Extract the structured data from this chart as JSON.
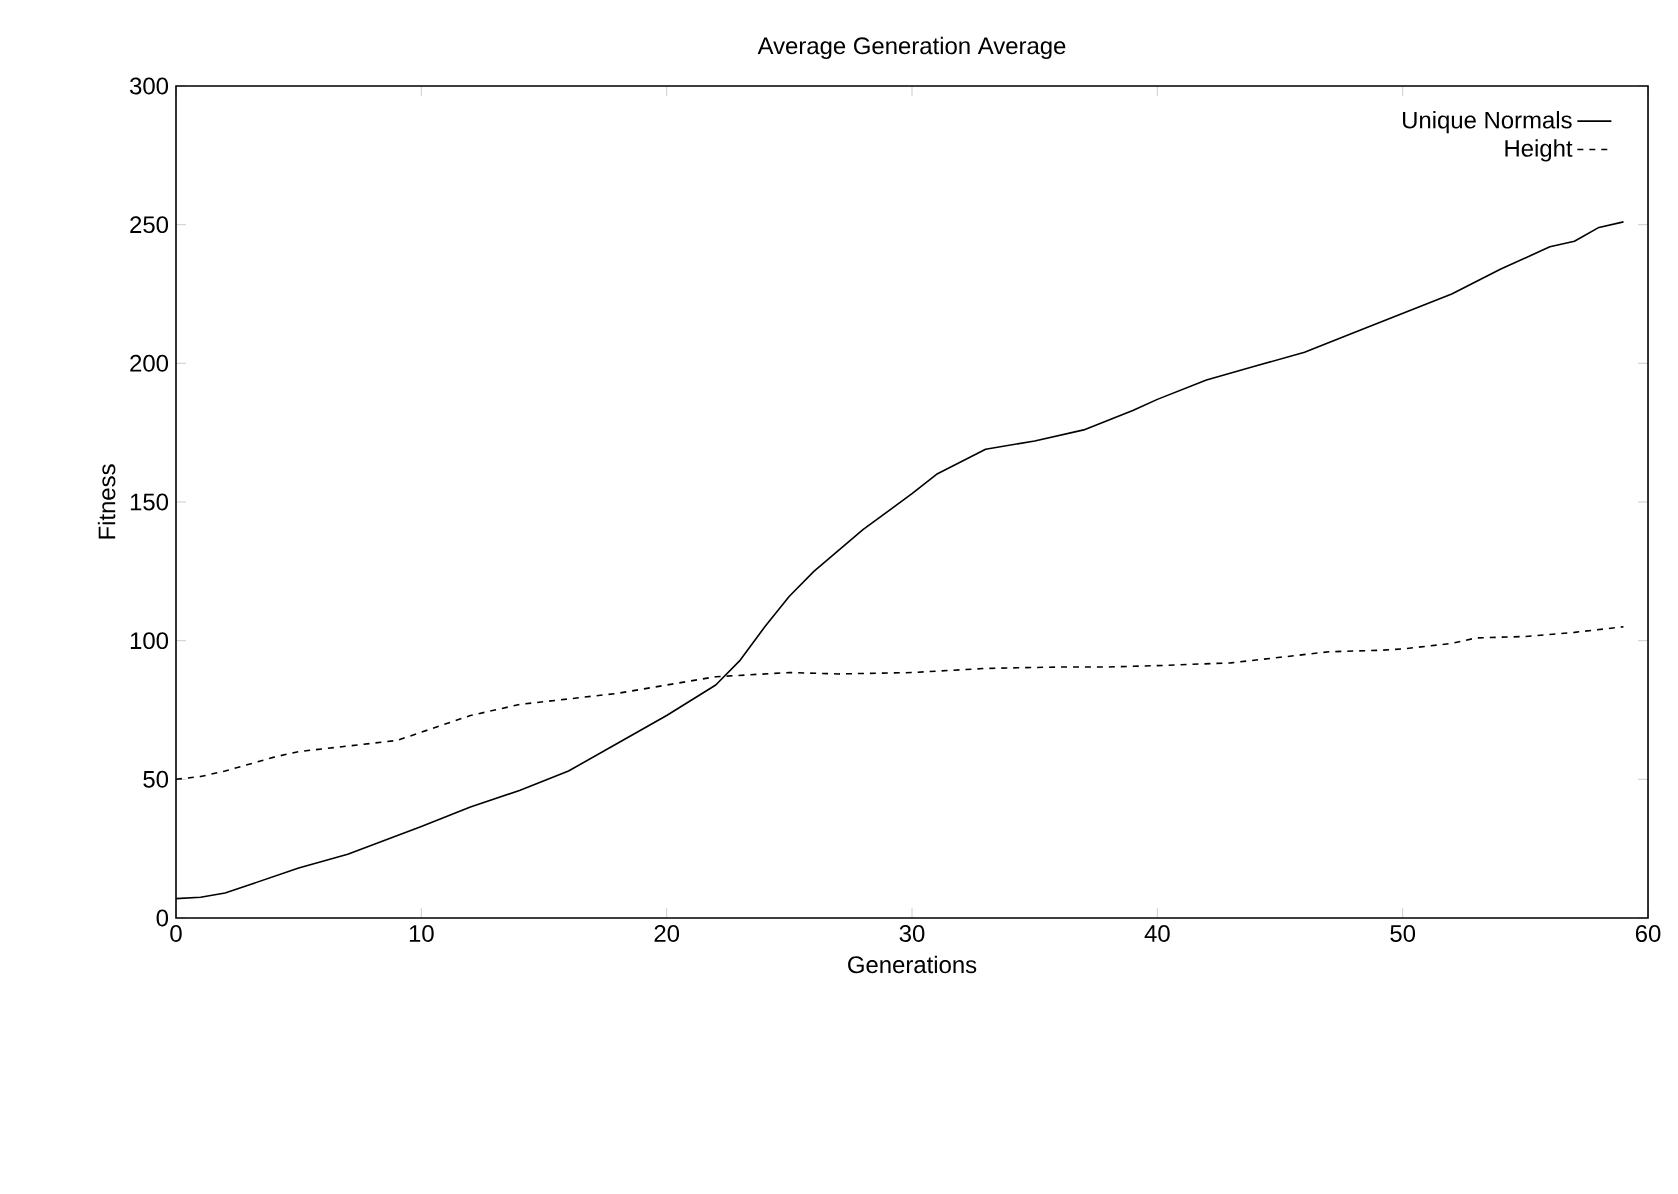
{
  "chart_data": {
    "type": "line",
    "title": "Average Generation Average",
    "xlabel": "Generations",
    "ylabel": "Fitness",
    "xlim": [
      0,
      60
    ],
    "ylim": [
      0,
      300
    ],
    "xticks": [
      0,
      10,
      20,
      30,
      40,
      50,
      60
    ],
    "yticks": [
      0,
      50,
      100,
      150,
      200,
      250,
      300
    ],
    "legend": "top right",
    "series": [
      {
        "name": "Unique Normals",
        "color": "#000000",
        "line_style": "solid",
        "x": [
          0,
          1,
          2,
          3,
          5,
          7,
          10,
          12,
          14,
          16,
          18,
          20,
          22,
          23,
          24,
          25,
          26,
          28,
          30,
          31,
          33,
          35,
          37,
          39,
          40,
          42,
          44,
          46,
          48,
          50,
          52,
          54,
          56,
          57,
          58,
          59
        ],
        "values": [
          7,
          7.5,
          9,
          12,
          18,
          23,
          33,
          40,
          46,
          53,
          63,
          73,
          84,
          93,
          105,
          116,
          125,
          140,
          153,
          160,
          169,
          172,
          176,
          183,
          187,
          194,
          199,
          204,
          211,
          218,
          225,
          234,
          242,
          244,
          249,
          251
        ]
      },
      {
        "name": "Height",
        "color": "#000000",
        "line_style": "dashed",
        "x": [
          0,
          1,
          2,
          4,
          5,
          7,
          9,
          10,
          12,
          14,
          16,
          18,
          20,
          22,
          25,
          27,
          30,
          33,
          36,
          38,
          40,
          43,
          45,
          47,
          49,
          50,
          52,
          53,
          55,
          57,
          59
        ],
        "values": [
          50,
          51,
          53,
          58,
          60,
          62,
          64,
          67,
          73,
          77,
          79,
          81,
          84,
          87,
          88.5,
          88,
          88.5,
          90,
          90.5,
          90.5,
          91,
          92,
          94,
          96,
          96.5,
          97,
          99,
          101,
          101.5,
          103,
          105
        ]
      }
    ]
  }
}
